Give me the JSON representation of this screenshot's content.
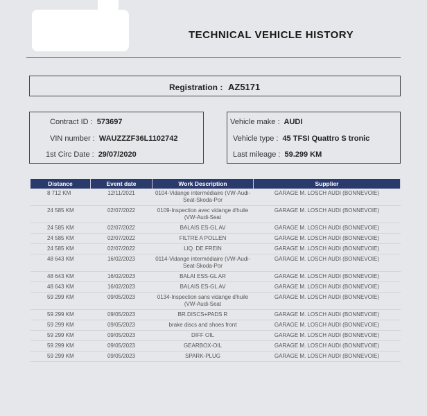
{
  "title": "TECHNICAL VEHICLE HISTORY",
  "registration": {
    "label": "Registration :",
    "value": "AZ5171"
  },
  "contract": {
    "contract_id_label": "Contract ID :",
    "contract_id": "573697",
    "vin_label": "VIN number :",
    "vin": "WAUZZZF36L1102742",
    "circ_label": "1st Circ Date :",
    "circ_date": "29/07/2020"
  },
  "vehicle": {
    "make_label": "Vehicle make :",
    "make": "AUDI",
    "type_label": "Vehicle type :",
    "type": "45 TFSI Quattro S tronic",
    "mileage_label": "Last mileage :",
    "mileage": "59.299 KM"
  },
  "table": {
    "headers": [
      "Distance",
      "Event date",
      "Work Description",
      "Supplier"
    ],
    "rows": [
      [
        "8 712 KM",
        "12/11/2021",
        "0104-Vidange intermédiaire (VW-Audi-Seat-Skoda-Por",
        "GARAGE M. LOSCH AUDI (BONNEVOIE)"
      ],
      [
        "24 585 KM",
        "02/07/2022",
        "0109-Inspection avec vidange d'huile (VW-Audi-Seat",
        "GARAGE M. LOSCH AUDI (BONNEVOIE)"
      ],
      [
        "24 585 KM",
        "02/07/2022",
        "BALAIS ES-GL AV",
        "GARAGE M. LOSCH AUDI (BONNEVOIE)"
      ],
      [
        "24 585 KM",
        "02/07/2022",
        "FILTRE A POLLEN",
        "GARAGE M. LOSCH AUDI (BONNEVOIE)"
      ],
      [
        "24 585 KM",
        "02/07/2022",
        "LIQ. DE FREIN",
        "GARAGE M. LOSCH AUDI (BONNEVOIE)"
      ],
      [
        "48 643 KM",
        "16/02/2023",
        "0114-Vidange intermédiaire (VW-Audi-Seat-Skoda-Por",
        "GARAGE M. LOSCH AUDI (BONNEVOIE)"
      ],
      [
        "48 643 KM",
        "16/02/2023",
        "BALAI ESS-GL AR",
        "GARAGE M. LOSCH AUDI (BONNEVOIE)"
      ],
      [
        "48 643 KM",
        "16/02/2023",
        "BALAIS ES-GL AV",
        "GARAGE M. LOSCH AUDI (BONNEVOIE)"
      ],
      [
        "59 299 KM",
        "09/05/2023",
        "0134-Inspection sans vidange d'huile (VW-Audi-Seat",
        "GARAGE M. LOSCH AUDI (BONNEVOIE)"
      ],
      [
        "59 299 KM",
        "09/05/2023",
        "BR.DISCS+PADS R",
        "GARAGE M. LOSCH AUDI (BONNEVOIE)"
      ],
      [
        "59 299 KM",
        "09/05/2023",
        "brake discs and shoes front",
        "GARAGE M. LOSCH AUDI (BONNEVOIE)"
      ],
      [
        "59 299 KM",
        "09/05/2023",
        "DIFF OIL",
        "GARAGE M. LOSCH AUDI (BONNEVOIE)"
      ],
      [
        "59 299 KM",
        "09/05/2023",
        "GEARBOX-OIL",
        "GARAGE M. LOSCH AUDI (BONNEVOIE)"
      ],
      [
        "59 299 KM",
        "09/05/2023",
        "SPARK-PLUG",
        "GARAGE M. LOSCH AUDI (BONNEVOIE)"
      ]
    ]
  },
  "colors": {
    "header_bg": "#2b3a6d",
    "paper": "#e6e7ea"
  }
}
